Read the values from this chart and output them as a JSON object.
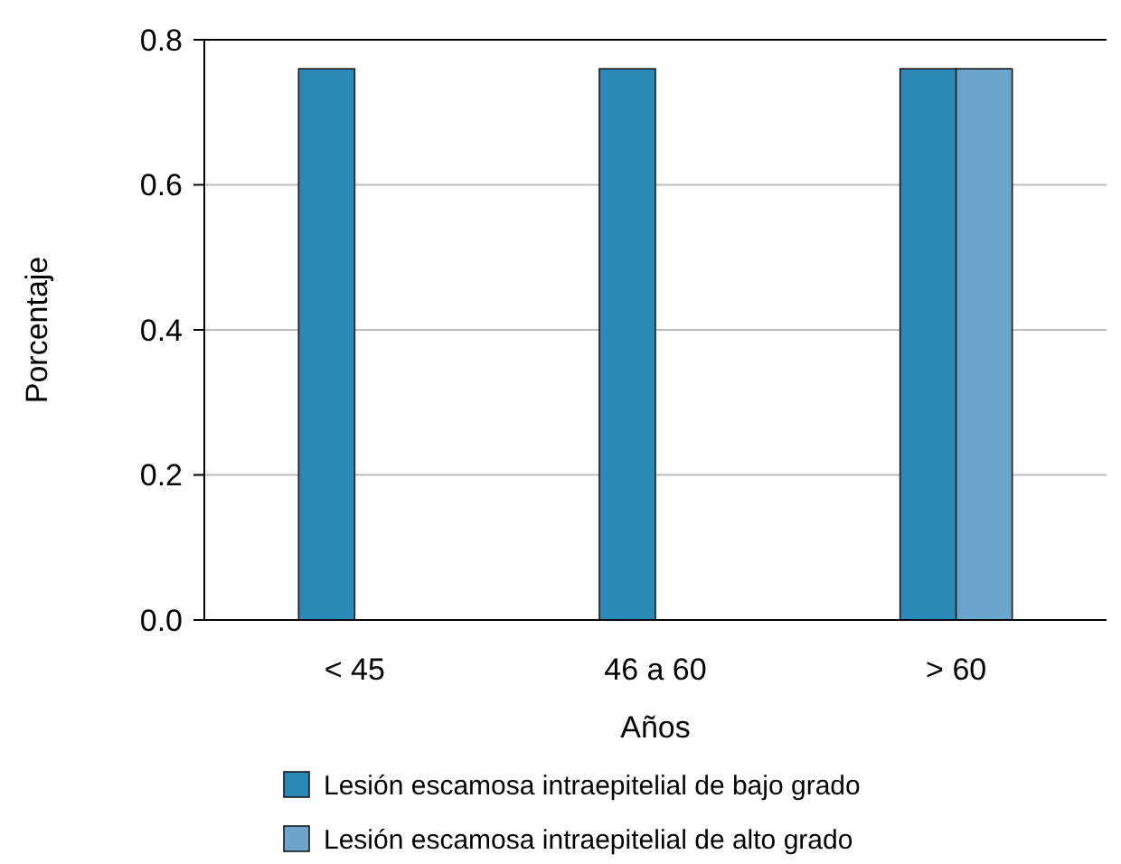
{
  "chart_data": {
    "type": "bar",
    "xlabel": "Años",
    "ylabel": "Porcentaje",
    "categories": [
      "< 45",
      "46 a 60",
      "> 60"
    ],
    "series": [
      {
        "name": "Lesión escamosa intraepitelial de bajo grado",
        "color": "#2b89b7",
        "values": [
          0.76,
          0.76,
          0.76
        ]
      },
      {
        "name": "Lesión escamosa intraepitelial de alto grado",
        "color": "#6ba5cb",
        "values": [
          0,
          0,
          0.76
        ]
      }
    ],
    "ylim": [
      0,
      0.8
    ],
    "yticks": [
      {
        "value": 0,
        "label": "0.0"
      },
      {
        "value": 0.2,
        "label": "0.2"
      },
      {
        "value": 0.4,
        "label": "0.4"
      },
      {
        "value": 0.6,
        "label": "0.6"
      },
      {
        "value": 0.8,
        "label": "0.8"
      }
    ],
    "grid": "y",
    "legend": "bottom"
  }
}
